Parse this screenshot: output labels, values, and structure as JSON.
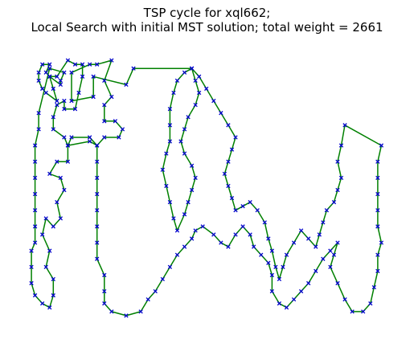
{
  "chart_data": {
    "type": "scatter",
    "title_line1": "TSP cycle for xql662;",
    "title_line2": "Local Search with initial MST solution; total weight = 2661",
    "axes_visible": false,
    "grid": false,
    "edge_color": "#008000",
    "marker_color": "#0000cc",
    "marker": "x",
    "xlim": [
      0,
      101
    ],
    "ylim": [
      0,
      68
    ],
    "tour": [
      [
        30,
        63
      ],
      [
        28,
        59
      ],
      [
        19,
        61
      ],
      [
        19,
        56
      ],
      [
        13,
        55
      ],
      [
        13,
        62
      ],
      [
        18,
        64
      ],
      [
        20,
        64
      ],
      [
        24,
        65
      ],
      [
        22,
        60
      ],
      [
        24,
        56
      ],
      [
        22,
        54
      ],
      [
        22,
        50
      ],
      [
        25,
        50
      ],
      [
        27,
        48
      ],
      [
        26,
        46
      ],
      [
        22,
        46
      ],
      [
        20,
        44
      ],
      [
        18,
        45
      ],
      [
        12,
        44
      ],
      [
        11,
        46
      ],
      [
        8,
        48
      ],
      [
        8,
        51
      ],
      [
        9,
        54
      ],
      [
        11,
        55
      ],
      [
        11,
        53
      ],
      [
        14,
        53
      ],
      [
        15,
        57
      ],
      [
        16,
        61
      ],
      [
        16,
        64
      ],
      [
        14,
        64
      ],
      [
        12,
        65
      ],
      [
        9,
        61
      ],
      [
        7,
        61
      ],
      [
        8,
        58
      ],
      [
        9,
        55
      ],
      [
        6,
        57
      ],
      [
        5,
        58
      ],
      [
        4,
        60
      ],
      [
        4,
        62
      ],
      [
        5,
        64
      ],
      [
        7,
        64
      ],
      [
        6,
        62
      ],
      [
        7,
        61
      ],
      [
        10,
        59
      ],
      [
        10,
        60
      ],
      [
        11,
        62
      ],
      [
        7,
        63
      ],
      [
        4,
        52
      ],
      [
        4,
        48
      ],
      [
        3,
        44
      ],
      [
        3,
        40
      ],
      [
        3,
        36
      ],
      [
        3,
        32
      ],
      [
        3,
        28
      ],
      [
        3,
        24
      ],
      [
        3,
        20
      ],
      [
        2,
        18
      ],
      [
        2,
        14
      ],
      [
        2,
        10
      ],
      [
        3,
        7
      ],
      [
        5,
        5
      ],
      [
        7,
        4
      ],
      [
        8,
        7
      ],
      [
        8,
        11
      ],
      [
        6,
        14
      ],
      [
        7,
        18
      ],
      [
        5,
        22
      ],
      [
        6,
        26
      ],
      [
        8,
        24
      ],
      [
        10,
        26
      ],
      [
        9,
        30
      ],
      [
        11,
        33
      ],
      [
        10,
        36
      ],
      [
        7,
        37
      ],
      [
        9,
        40
      ],
      [
        12,
        40
      ],
      [
        12,
        44
      ],
      [
        13,
        46
      ],
      [
        18,
        46
      ],
      [
        20,
        44
      ],
      [
        20,
        40
      ],
      [
        20,
        36
      ],
      [
        20,
        32
      ],
      [
        20,
        28
      ],
      [
        20,
        24
      ],
      [
        20,
        20
      ],
      [
        20,
        16
      ],
      [
        22,
        12
      ],
      [
        22,
        8
      ],
      [
        22,
        5
      ],
      [
        24,
        3
      ],
      [
        28,
        2
      ],
      [
        32,
        3
      ],
      [
        34,
        6
      ],
      [
        36,
        8
      ],
      [
        38,
        11
      ],
      [
        40,
        14
      ],
      [
        42,
        17
      ],
      [
        44,
        19
      ],
      [
        46,
        21
      ],
      [
        47,
        23
      ],
      [
        49,
        24
      ],
      [
        52,
        22
      ],
      [
        54,
        20
      ],
      [
        56,
        19
      ],
      [
        58,
        22
      ],
      [
        60,
        24
      ],
      [
        62,
        22
      ],
      [
        63,
        19
      ],
      [
        65,
        17
      ],
      [
        67,
        15
      ],
      [
        68,
        12
      ],
      [
        68,
        8
      ],
      [
        70,
        5
      ],
      [
        72,
        4
      ],
      [
        74,
        6
      ],
      [
        76,
        8
      ],
      [
        78,
        10
      ],
      [
        80,
        13
      ],
      [
        82,
        16
      ],
      [
        84,
        18
      ],
      [
        86,
        20
      ],
      [
        85,
        17
      ],
      [
        84,
        14
      ],
      [
        86,
        10
      ],
      [
        88,
        6
      ],
      [
        90,
        3
      ],
      [
        93,
        3
      ],
      [
        95,
        5
      ],
      [
        96,
        9
      ],
      [
        97,
        13
      ],
      [
        97,
        17
      ],
      [
        98,
        20
      ],
      [
        97,
        24
      ],
      [
        97,
        28
      ],
      [
        97,
        32
      ],
      [
        97,
        36
      ],
      [
        97,
        40
      ],
      [
        98,
        44
      ],
      [
        88,
        49
      ],
      [
        87,
        44
      ],
      [
        86,
        40
      ],
      [
        87,
        36
      ],
      [
        86,
        33
      ],
      [
        85,
        30
      ],
      [
        83,
        28
      ],
      [
        82,
        25
      ],
      [
        81,
        22
      ],
      [
        80,
        19
      ],
      [
        78,
        21
      ],
      [
        76,
        23
      ],
      [
        74,
        20
      ],
      [
        72,
        17
      ],
      [
        71,
        14
      ],
      [
        70,
        11
      ],
      [
        69,
        14
      ],
      [
        68,
        18
      ],
      [
        67,
        21
      ],
      [
        66,
        25
      ],
      [
        64,
        28
      ],
      [
        62,
        30
      ],
      [
        60,
        29
      ],
      [
        58,
        28
      ],
      [
        57,
        31
      ],
      [
        56,
        34
      ],
      [
        55,
        37
      ],
      [
        56,
        40
      ],
      [
        57,
        43
      ],
      [
        58,
        46
      ],
      [
        56,
        49
      ],
      [
        54,
        52
      ],
      [
        52,
        55
      ],
      [
        50,
        58
      ],
      [
        48,
        61
      ],
      [
        46,
        63
      ],
      [
        44,
        62
      ],
      [
        42,
        60
      ],
      [
        41,
        57
      ],
      [
        40,
        53
      ],
      [
        40,
        49
      ],
      [
        40,
        45
      ],
      [
        39,
        42
      ],
      [
        38,
        38
      ],
      [
        39,
        34
      ],
      [
        40,
        30
      ],
      [
        41,
        26
      ],
      [
        42,
        23
      ],
      [
        44,
        27
      ],
      [
        45,
        30
      ],
      [
        46,
        33
      ],
      [
        47,
        36
      ],
      [
        46,
        39
      ],
      [
        44,
        42
      ],
      [
        43,
        45
      ],
      [
        44,
        48
      ],
      [
        45,
        51
      ],
      [
        47,
        54
      ],
      [
        48,
        57
      ],
      [
        47,
        60
      ],
      [
        46,
        63
      ]
    ]
  }
}
